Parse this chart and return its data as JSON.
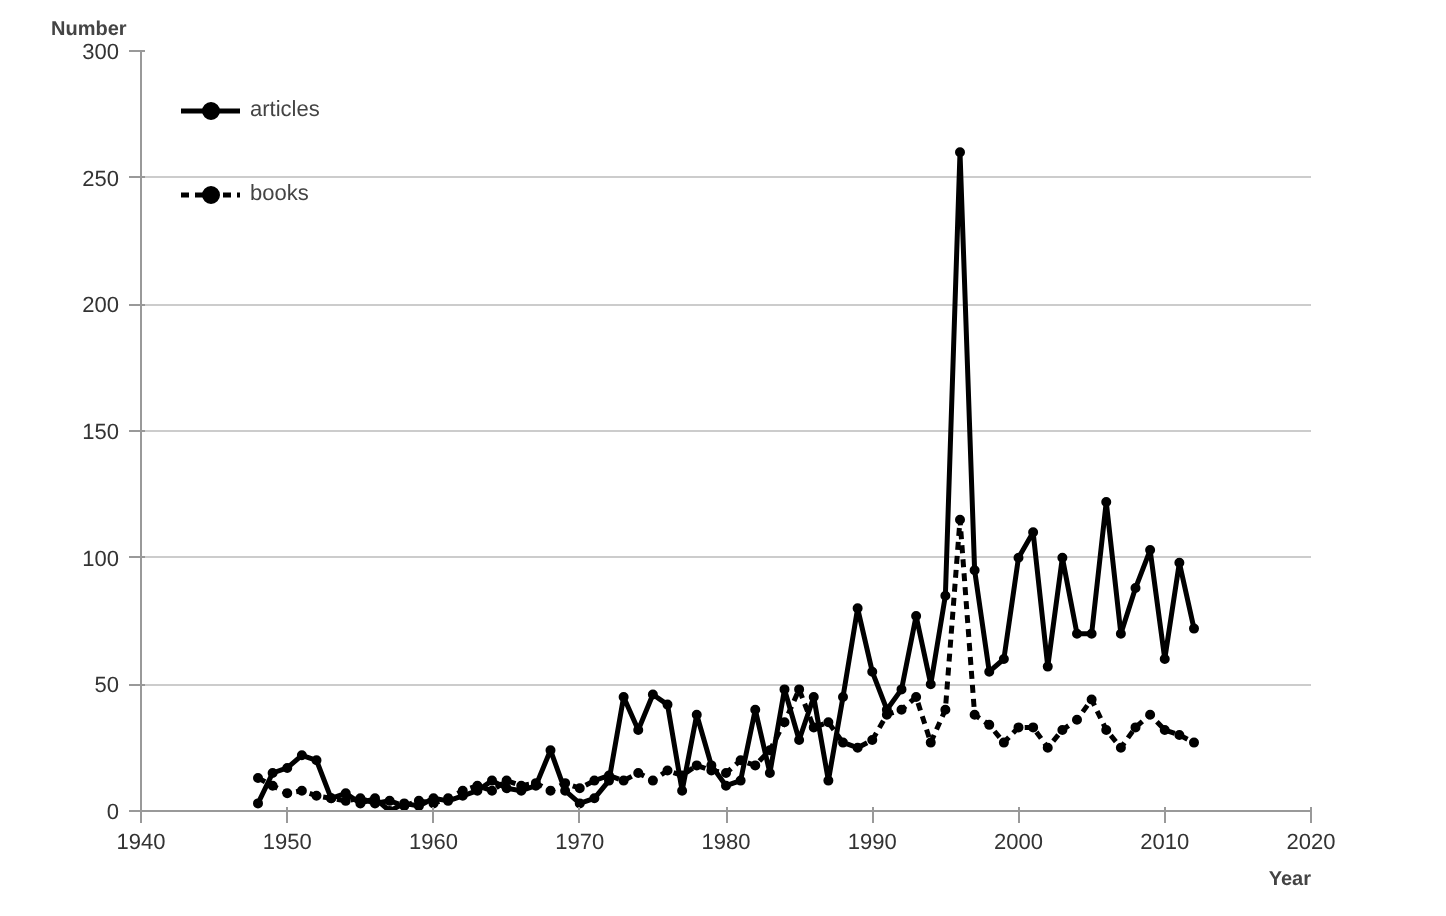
{
  "chart_data": {
    "type": "line",
    "xlabel": "Year",
    "ylabel": "Number",
    "x": [
      1948,
      1949,
      1950,
      1951,
      1952,
      1953,
      1954,
      1955,
      1956,
      1957,
      1958,
      1959,
      1960,
      1961,
      1962,
      1963,
      1964,
      1965,
      1966,
      1967,
      1968,
      1969,
      1970,
      1971,
      1972,
      1973,
      1974,
      1975,
      1976,
      1977,
      1978,
      1979,
      1980,
      1981,
      1982,
      1983,
      1984,
      1985,
      1986,
      1987,
      1988,
      1989,
      1990,
      1991,
      1992,
      1993,
      1994,
      1995,
      1996,
      1997,
      1998,
      1999,
      2000,
      2001,
      2002,
      2003,
      2004,
      2005,
      2006,
      2007,
      2008,
      2009,
      2010,
      2011,
      2012
    ],
    "series": [
      {
        "name": "articles",
        "color": "#000000",
        "line_style": "solid",
        "values": [
          3,
          15,
          17,
          22,
          20,
          5,
          7,
          3,
          5,
          0,
          3,
          2,
          5,
          4,
          6,
          8,
          12,
          9,
          8,
          10,
          24,
          8,
          3,
          5,
          12,
          45,
          32,
          46,
          42,
          8,
          38,
          18,
          10,
          12,
          40,
          15,
          48,
          28,
          45,
          12,
          45,
          80,
          55,
          40,
          48,
          77,
          50,
          85,
          260,
          95,
          55,
          60,
          100,
          110,
          57,
          100,
          70,
          70,
          122,
          70,
          88,
          103,
          60,
          98,
          72
        ]
      },
      {
        "name": "books",
        "color": "#000000",
        "line_style": "dashed",
        "values": [
          13,
          10,
          7,
          8,
          6,
          5,
          4,
          5,
          3,
          4,
          2,
          4,
          3,
          5,
          8,
          10,
          8,
          12,
          10,
          11,
          8,
          11,
          9,
          12,
          14,
          12,
          15,
          12,
          16,
          14,
          18,
          16,
          15,
          20,
          18,
          24,
          35,
          48,
          33,
          35,
          27,
          25,
          28,
          38,
          40,
          45,
          27,
          40,
          115,
          38,
          34,
          27,
          33,
          33,
          25,
          32,
          36,
          44,
          32,
          25,
          33,
          38,
          32,
          30,
          27
        ]
      }
    ],
    "xlim": [
      1940,
      2020
    ],
    "xticks": [
      1940,
      1950,
      1960,
      1970,
      1980,
      1990,
      2000,
      2010,
      2020
    ],
    "ylim": [
      0,
      300
    ],
    "yticks": [
      0,
      50,
      100,
      150,
      200,
      250,
      300
    ],
    "grid": "y",
    "legend": "top left",
    "marker": "circle"
  }
}
